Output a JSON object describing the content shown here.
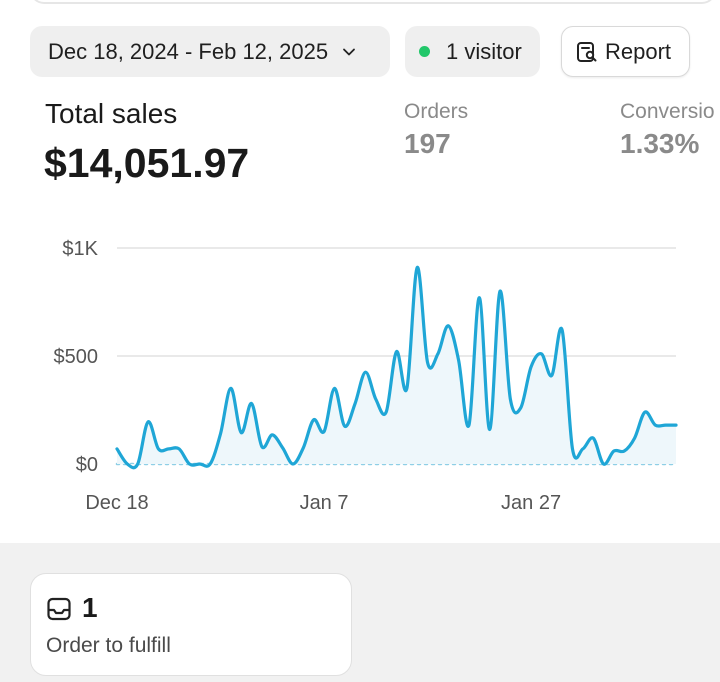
{
  "filters": {
    "date_range": "Dec 18, 2024 - Feb 12, 2025",
    "visitors": "1 visitor",
    "report_label": "Report"
  },
  "summary": {
    "total_sales_label": "Total sales",
    "total_sales_value": "$14,051.97",
    "orders_label": "Orders",
    "orders_value": "197",
    "conversion_label": "Conversio",
    "conversion_value": "1.33%"
  },
  "chart_data": {
    "type": "line",
    "y_tick_labels": [
      "$0",
      "$500",
      "$1K"
    ],
    "x_tick_labels": [
      "Dec 18",
      "Jan 7",
      "Jan 27"
    ],
    "ylim": [
      0,
      1000
    ],
    "x_days": [
      0,
      1,
      2,
      3,
      4,
      5,
      6,
      7,
      8,
      9,
      10,
      11,
      12,
      13,
      14,
      15,
      16,
      17,
      18,
      19,
      20,
      21,
      22,
      23,
      24,
      25,
      26,
      27,
      28,
      29,
      30,
      31,
      32,
      33,
      34,
      35,
      36,
      37,
      38,
      39,
      40,
      41,
      42,
      43,
      44,
      45,
      46,
      47,
      48,
      49,
      50,
      51,
      52,
      53,
      54
    ],
    "series": [
      {
        "values": [
          70,
          0,
          0,
          195,
          70,
          70,
          70,
          0,
          0,
          0,
          140,
          350,
          145,
          280,
          80,
          135,
          75,
          0,
          75,
          205,
          150,
          350,
          175,
          280,
          425,
          300,
          240,
          520,
          350,
          910,
          470,
          510,
          640,
          480,
          180,
          770,
          160,
          800,
          300,
          260,
          450,
          510,
          410,
          620,
          70,
          70,
          120,
          0,
          60,
          60,
          120,
          240,
          180,
          180,
          180
        ]
      }
    ],
    "colors": {
      "line": "#1fa6d6",
      "fill": "#eef7fb",
      "grid": "#dcdcdc",
      "baseline": "#8fcfe6"
    }
  },
  "fulfill": {
    "count": "1",
    "label": "Order to fulfill"
  }
}
